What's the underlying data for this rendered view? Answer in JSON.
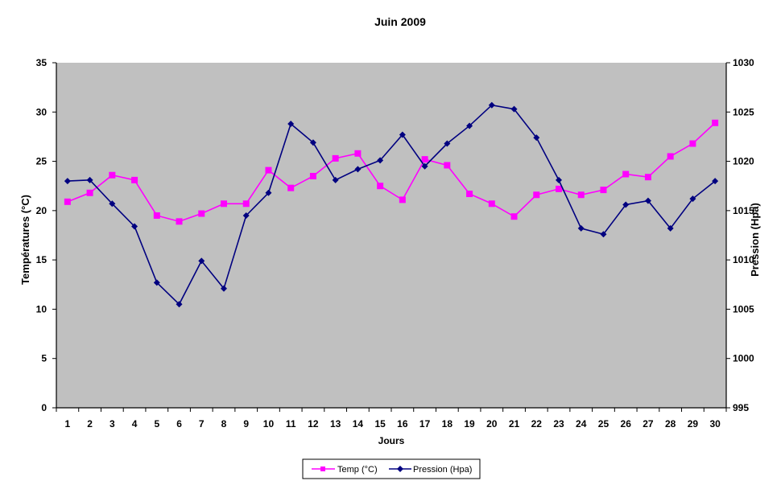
{
  "chart_data": {
    "type": "line",
    "title": "Juin 2009",
    "xlabel": "Jours",
    "ylabel_left": "Températures (°C)",
    "ylabel_right": "Pression (Hpa)",
    "categories": [
      "1",
      "2",
      "3",
      "4",
      "5",
      "6",
      "7",
      "8",
      "9",
      "10",
      "11",
      "12",
      "13",
      "14",
      "15",
      "16",
      "17",
      "18",
      "19",
      "20",
      "21",
      "22",
      "23",
      "24",
      "25",
      "26",
      "27",
      "28",
      "29",
      "30"
    ],
    "y_left": {
      "lim": [
        0,
        35
      ],
      "ticks": [
        "0",
        "5",
        "10",
        "15",
        "20",
        "25",
        "30",
        "35"
      ]
    },
    "y_right": {
      "lim": [
        995,
        1030
      ],
      "ticks": [
        "995",
        "1000",
        "1005",
        "1010",
        "1015",
        "1020",
        "1025",
        "1030"
      ]
    },
    "grid": false,
    "legend_position": "bottom-center",
    "plot_background": "#c0c0c0",
    "series": [
      {
        "name": "Temp (°C)",
        "axis": "left",
        "color": "#ff00ff",
        "marker": "square",
        "values": [
          20.9,
          21.8,
          23.6,
          23.1,
          19.5,
          18.9,
          19.7,
          20.7,
          20.7,
          24.1,
          22.3,
          23.5,
          25.3,
          25.8,
          22.5,
          21.1,
          25.2,
          24.6,
          21.7,
          20.7,
          19.4,
          21.6,
          22.2,
          21.6,
          22.1,
          23.7,
          23.4,
          25.5,
          26.8,
          28.9
        ]
      },
      {
        "name": "Pression (Hpa)",
        "axis": "right",
        "color": "#000080",
        "marker": "diamond",
        "values": [
          1018.0,
          1018.1,
          1015.7,
          1013.4,
          1007.7,
          1005.5,
          1009.9,
          1007.1,
          1014.5,
          1016.8,
          1023.8,
          1021.9,
          1018.1,
          1019.2,
          1020.1,
          1022.7,
          1019.5,
          1021.8,
          1023.6,
          1025.7,
          1025.3,
          1022.4,
          1018.1,
          1013.2,
          1012.6,
          1015.6,
          1016.0,
          1013.2,
          1016.2,
          1018.0
        ]
      }
    ]
  }
}
